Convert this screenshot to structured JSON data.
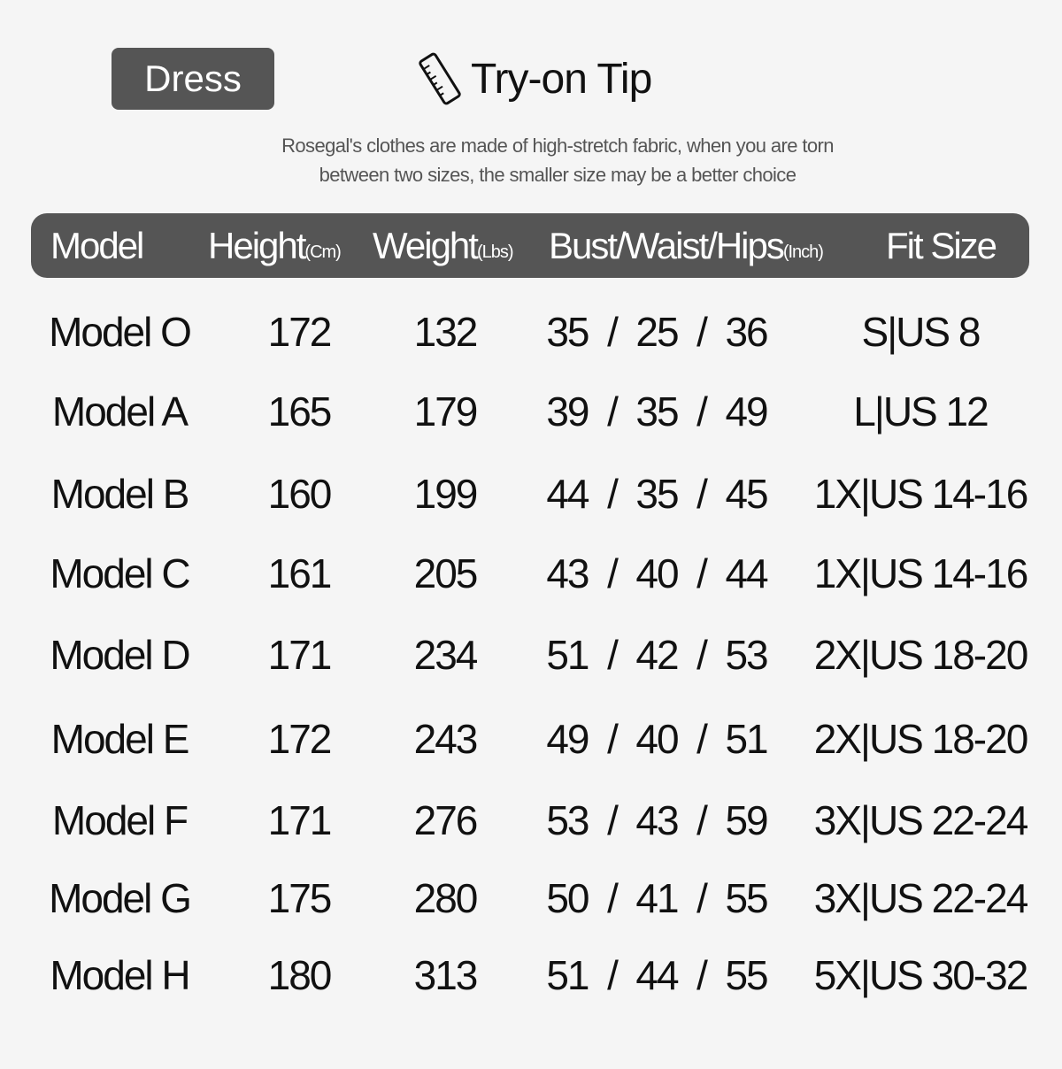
{
  "category_badge": "Dress",
  "tip": {
    "icon": "ruler-icon",
    "title": "Try-on Tip",
    "note_line1": "Rosegal's clothes are made of high-stretch fabric, when you are torn",
    "note_line2": "between two sizes, the smaller size may be a better choice"
  },
  "table": {
    "headers": [
      {
        "label": "Model",
        "unit": ""
      },
      {
        "label": "Height",
        "unit": "(Cm)"
      },
      {
        "label": "Weight",
        "unit": "(Lbs)"
      },
      {
        "label": "Bust/Waist/Hips",
        "unit": "(Inch)"
      },
      {
        "label": "Fit Size",
        "unit": ""
      }
    ],
    "rows": [
      {
        "model": "Model O",
        "height": "172",
        "weight": "132",
        "bwh": "35  /  25  /  36",
        "fit": "S|US 8"
      },
      {
        "model": "Model A",
        "height": "165",
        "weight": "179",
        "bwh": "39  /  35  /  49",
        "fit": "L|US 12"
      },
      {
        "model": "Model B",
        "height": "160",
        "weight": "199",
        "bwh": "44  /  35  /  45",
        "fit": "1X|US 14-16"
      },
      {
        "model": "Model C",
        "height": "161",
        "weight": "205",
        "bwh": "43  /  40  /  44",
        "fit": "1X|US 14-16"
      },
      {
        "model": "Model D",
        "height": "171",
        "weight": "234",
        "bwh": "51  /  42  /  53",
        "fit": "2X|US 18-20"
      },
      {
        "model": "Model E",
        "height": "172",
        "weight": "243",
        "bwh": "49  /  40  /  51",
        "fit": "2X|US 18-20"
      },
      {
        "model": "Model F",
        "height": "171",
        "weight": "276",
        "bwh": "53  /  43  /  59",
        "fit": "3X|US 22-24"
      },
      {
        "model": "Model G",
        "height": "175",
        "weight": "280",
        "bwh": "50  /  41  /  55",
        "fit": "3X|US 22-24"
      },
      {
        "model": "Model H",
        "height": "180",
        "weight": "313",
        "bwh": "51  /  44  /  55",
        "fit": "5X|US 30-32"
      }
    ]
  },
  "colors": {
    "header_bg": "#555555",
    "page_bg": "#f5f5f5",
    "text": "#111111"
  }
}
